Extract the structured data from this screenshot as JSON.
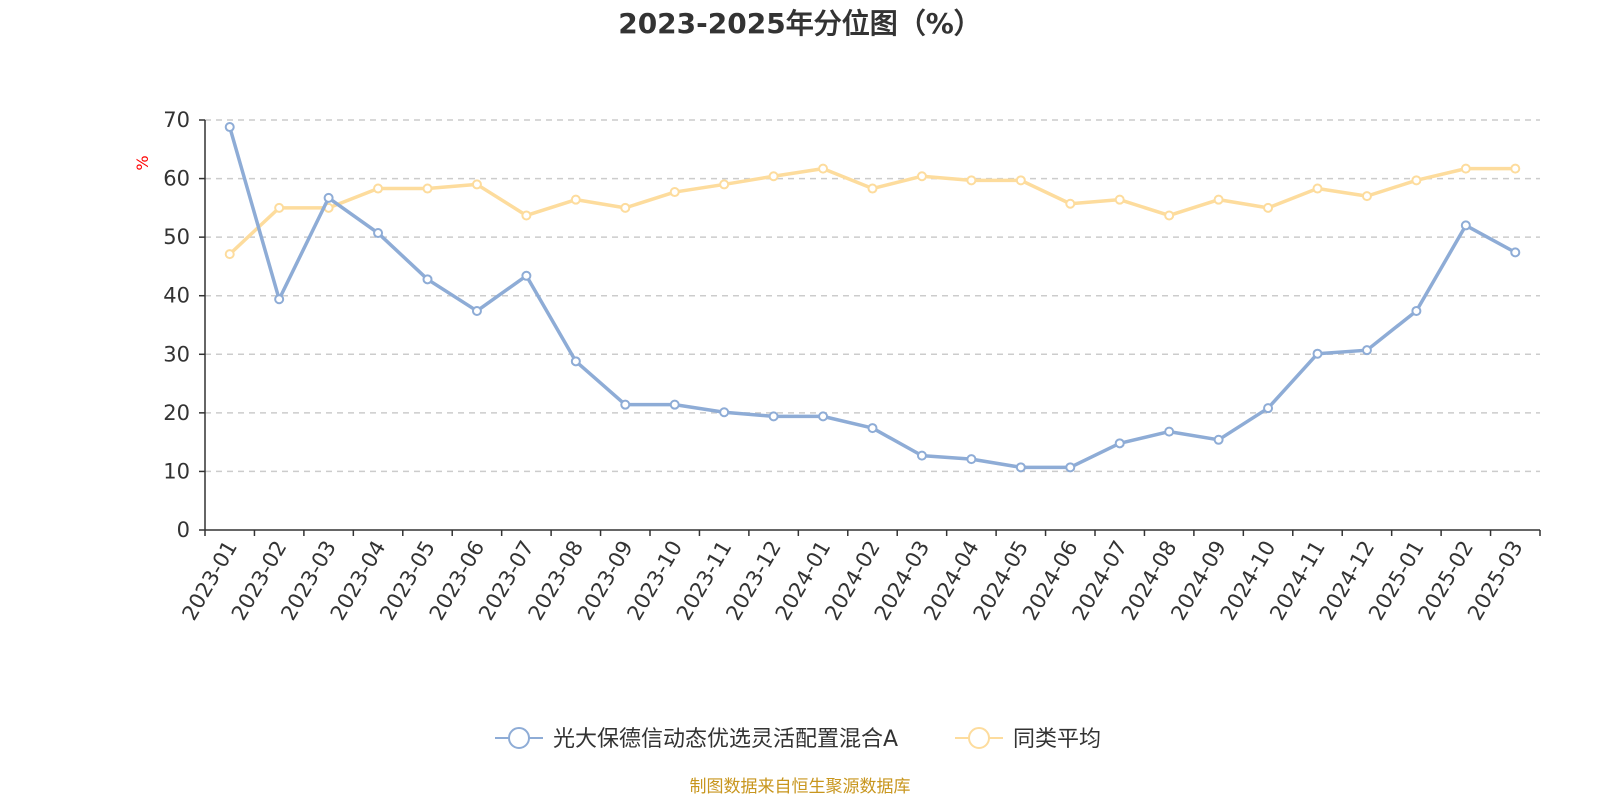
{
  "chart_data": {
    "type": "line",
    "title": "2023-2025年分位图（%）",
    "unit_label": "%",
    "source": "制图数据来自恒生聚源数据库",
    "categories": [
      "2023-01",
      "2023-02",
      "2023-03",
      "2023-04",
      "2023-05",
      "2023-06",
      "2023-07",
      "2023-08",
      "2023-09",
      "2023-10",
      "2023-11",
      "2023-12",
      "2024-01",
      "2024-02",
      "2024-03",
      "2024-04",
      "2024-05",
      "2024-06",
      "2024-07",
      "2024-08",
      "2024-09",
      "2024-10",
      "2024-11",
      "2024-12",
      "2025-01",
      "2025-02",
      "2025-03"
    ],
    "ylim": [
      0,
      70
    ],
    "yticks": [
      0,
      10,
      20,
      30,
      40,
      50,
      60,
      70
    ],
    "grid": true,
    "legend_position": "bottom-center",
    "series": [
      {
        "name": "光大保德信动态优选灵活配置混合A",
        "color": "#8eacd6",
        "values": [
          68.8,
          39.4,
          56.7,
          50.7,
          42.8,
          37.4,
          43.4,
          28.8,
          21.4,
          21.4,
          20.1,
          19.4,
          19.4,
          17.4,
          12.7,
          12.1,
          10.7,
          10.7,
          14.8,
          16.8,
          15.4,
          20.8,
          30.1,
          30.7,
          37.4,
          52.0,
          47.4
        ]
      },
      {
        "name": "同类平均",
        "color": "#fddc9d",
        "values": [
          47.1,
          55.0,
          55.0,
          58.3,
          58.3,
          59.0,
          53.7,
          56.4,
          55.0,
          57.7,
          59.0,
          60.4,
          61.7,
          58.3,
          60.4,
          59.7,
          59.7,
          55.7,
          56.4,
          53.7,
          56.4,
          55.0,
          58.3,
          57.0,
          59.7,
          61.7,
          61.7
        ]
      }
    ]
  }
}
